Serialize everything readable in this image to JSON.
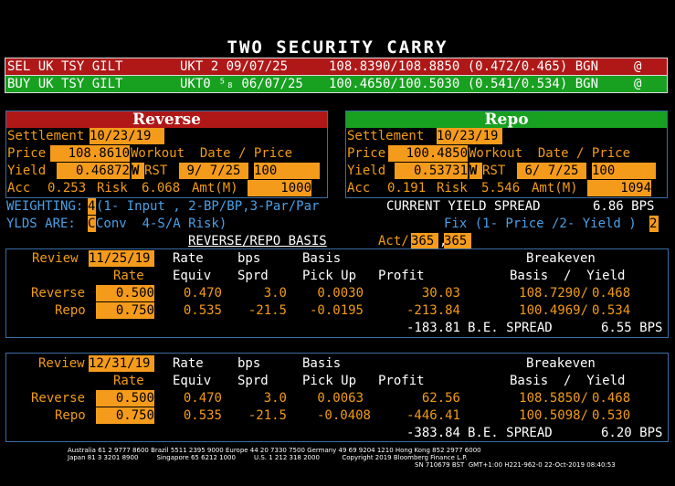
{
  "title": "TWO SECURITY CARRY",
  "sell": {
    "side": "SEL UK TSY GILT",
    "ticker": "UKT 2 09/07/25",
    "price": "108.8390/108.8850 (0.472/0.465) BGN",
    "at": "@"
  },
  "buy": {
    "side": "BUY UK TSY GILT",
    "ticker": "UKT0 ⁵₈ 06/07/25",
    "price": "100.4650/100.5030 (0.541/0.534) BGN",
    "at": "@"
  },
  "reverse": {
    "header": "Reverse",
    "settlement_label": "Settlement",
    "settlement": "10/23/19",
    "price_label": "Price",
    "price": "108.8610",
    "workout_label": "Workout  Date / Price",
    "yield_label": "Yield",
    "yield": "0.46872",
    "w": "W",
    "rst": "RST",
    "date": "9/ 7/25",
    "wprice": "100",
    "acc_label": "Acc",
    "acc": "0.253",
    "risk_label": "Risk",
    "risk": "6.068",
    "amt_label": "Amt(M)",
    "amt": "1000"
  },
  "repo": {
    "header": "Repo",
    "settlement_label": "Settlement",
    "settlement": "10/23/19",
    "price_label": "Price",
    "price": "100.4850",
    "workout_label": "Workout  Date / Price",
    "yield_label": "Yield",
    "yield": "0.53731",
    "w": "W",
    "rst": "RST",
    "date": "6/ 7/25",
    "wprice": "100",
    "acc_label": "Acc",
    "acc": "0.191",
    "risk_label": "Risk",
    "risk": "5.546",
    "amt_label": "Amt(M)",
    "amt": "1094"
  },
  "weighting": {
    "label": "WEIGHTING:",
    "value": "4",
    "desc": "(1- Input , 2-BP/BP,3-Par/Par"
  },
  "ylds": {
    "label": "YLDS ARE:",
    "value": "C",
    "desc": "Conv  4-S/A Risk)"
  },
  "current_yield_spread": {
    "label": "CURRENT YIELD SPREAD",
    "value": "6.86 BPS"
  },
  "fix": {
    "label": "Fix (1- Price /2- Yield )",
    "value": "2"
  },
  "basis_title": "REVERSE/REPO BASIS",
  "act": {
    "label": "Act/",
    "v1": "365",
    "comma": ",",
    "v2": "365"
  },
  "sections": [
    {
      "review_label": "Review",
      "review_date": "11/25/19",
      "h1": [
        "Rate",
        "bps",
        "Basis",
        "",
        "Breakeven"
      ],
      "h2": [
        "Rate",
        "Equiv",
        "Sprd",
        "Pick Up",
        "Profit",
        "Basis  /  Yield"
      ],
      "rows": [
        {
          "name": "Reverse",
          "rate": "0.500",
          "equiv": "0.470",
          "sprd": "3.0",
          "pickup": "0.0030",
          "profit": "30.03",
          "basis": "108.7290/",
          "yield": "0.468"
        },
        {
          "name": "Repo",
          "rate": "0.750",
          "equiv": "0.535",
          "sprd": "-21.5",
          "pickup": "-0.0195",
          "profit": "-213.84",
          "basis": "100.4969/",
          "yield": "0.534"
        }
      ],
      "be_profit": "-183.81",
      "be_label": "B.E. SPREAD",
      "be_value": "6.55 BPS"
    },
    {
      "review_label": "Review",
      "review_date": "12/31/19",
      "h1": [
        "Rate",
        "bps",
        "Basis",
        "",
        "Breakeven"
      ],
      "h2": [
        "Rate",
        "Equiv",
        "Sprd",
        "Pick Up",
        "Profit",
        "Basis  /  Yield"
      ],
      "rows": [
        {
          "name": "Reverse",
          "rate": "0.500",
          "equiv": "0.470",
          "sprd": "3.0",
          "pickup": "0.0063",
          "profit": "62.56",
          "basis": "108.5850/",
          "yield": "0.468"
        },
        {
          "name": "Repo",
          "rate": "0.750",
          "equiv": "0.535",
          "sprd": "-21.5",
          "pickup": "-0.0408",
          "profit": "-446.41",
          "basis": "100.5098/",
          "yield": "0.530"
        }
      ],
      "be_profit": "-383.84",
      "be_label": "B.E. SPREAD",
      "be_value": "6.20 BPS"
    }
  ],
  "footer": {
    "line1": "Australia 61 2 9777 8600 Brazil 5511 2395 9000 Europe 44 20 7330 7500 Germany 49 69 9204 1210 Hong Kong 852 2977 6000",
    "line2": "Japan 81 3 3201 8900         Singapore 65 6212 1000         U.S. 1 212 318 2000           Copyright 2019 Bloomberg Finance L.P.",
    "line3": "SN 710679 BST  GMT+1:00 H221-962-0 22-Oct-2019 08:40:53"
  }
}
